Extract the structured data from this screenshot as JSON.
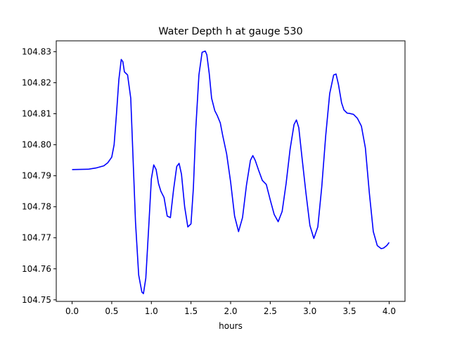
{
  "chart_data": {
    "type": "line",
    "title": "Water Depth h at gauge 530",
    "xlabel": "hours",
    "ylabel": "",
    "xlim": [
      -0.2,
      4.2
    ],
    "ylim": [
      104.7495,
      104.8335
    ],
    "grid": false,
    "x_ticks": [
      0.0,
      0.5,
      1.0,
      1.5,
      2.0,
      2.5,
      3.0,
      3.5,
      4.0
    ],
    "x_tick_labels": [
      "0.0",
      "0.5",
      "1.0",
      "1.5",
      "2.0",
      "2.5",
      "3.0",
      "3.5",
      "4.0"
    ],
    "y_ticks": [
      104.75,
      104.76,
      104.77,
      104.78,
      104.79,
      104.8,
      104.81,
      104.82,
      104.83
    ],
    "y_tick_labels": [
      "104.75",
      "104.76",
      "104.77",
      "104.78",
      "104.79",
      "104.80",
      "104.81",
      "104.82",
      "104.83"
    ],
    "series": [
      {
        "color": "#0000ff",
        "x": [
          0.0,
          0.2,
          0.3,
          0.4,
          0.45,
          0.5,
          0.53,
          0.56,
          0.59,
          0.62,
          0.64,
          0.66,
          0.68,
          0.7,
          0.74,
          0.77,
          0.8,
          0.84,
          0.88,
          0.9,
          0.93,
          0.97,
          1.0,
          1.03,
          1.06,
          1.09,
          1.12,
          1.16,
          1.2,
          1.24,
          1.28,
          1.32,
          1.35,
          1.38,
          1.42,
          1.46,
          1.5,
          1.53,
          1.56,
          1.6,
          1.64,
          1.68,
          1.7,
          1.73,
          1.76,
          1.8,
          1.83,
          1.87,
          1.9,
          1.95,
          2.0,
          2.05,
          2.1,
          2.15,
          2.2,
          2.25,
          2.28,
          2.31,
          2.35,
          2.4,
          2.45,
          2.5,
          2.55,
          2.6,
          2.65,
          2.7,
          2.75,
          2.8,
          2.83,
          2.86,
          2.9,
          2.95,
          3.0,
          3.05,
          3.1,
          3.15,
          3.2,
          3.25,
          3.3,
          3.33,
          3.36,
          3.4,
          3.43,
          3.47,
          3.5,
          3.55,
          3.6,
          3.65,
          3.7,
          3.75,
          3.8,
          3.85,
          3.9,
          3.93,
          3.97,
          4.0
        ],
        "y": [
          104.792,
          104.7921,
          104.7925,
          104.7932,
          104.7942,
          104.796,
          104.8,
          104.81,
          104.821,
          104.8275,
          104.8268,
          104.8235,
          104.823,
          104.8225,
          104.815,
          104.795,
          104.775,
          104.758,
          104.7525,
          104.752,
          104.757,
          104.775,
          104.789,
          104.7935,
          104.792,
          104.7875,
          104.785,
          104.783,
          104.777,
          104.7765,
          104.7855,
          104.793,
          104.794,
          104.7905,
          104.78,
          104.7735,
          104.7745,
          104.786,
          104.805,
          104.8225,
          104.8298,
          104.8302,
          104.829,
          104.823,
          104.815,
          104.811,
          104.8095,
          104.807,
          104.803,
          104.797,
          104.788,
          104.777,
          104.772,
          104.7765,
          104.787,
          104.795,
          104.7965,
          104.795,
          104.792,
          104.7885,
          104.7872,
          104.7822,
          104.7775,
          104.7752,
          104.7785,
          104.7875,
          104.7985,
          104.8065,
          104.808,
          104.8055,
          104.796,
          104.7845,
          104.774,
          104.7698,
          104.7735,
          104.7865,
          104.803,
          104.8165,
          104.8225,
          104.8228,
          104.8195,
          104.8135,
          104.8112,
          104.8102,
          104.8101,
          104.8098,
          104.8085,
          104.806,
          104.799,
          104.7845,
          104.772,
          104.7675,
          104.7665,
          104.7667,
          104.7675,
          104.7685
        ]
      }
    ]
  }
}
